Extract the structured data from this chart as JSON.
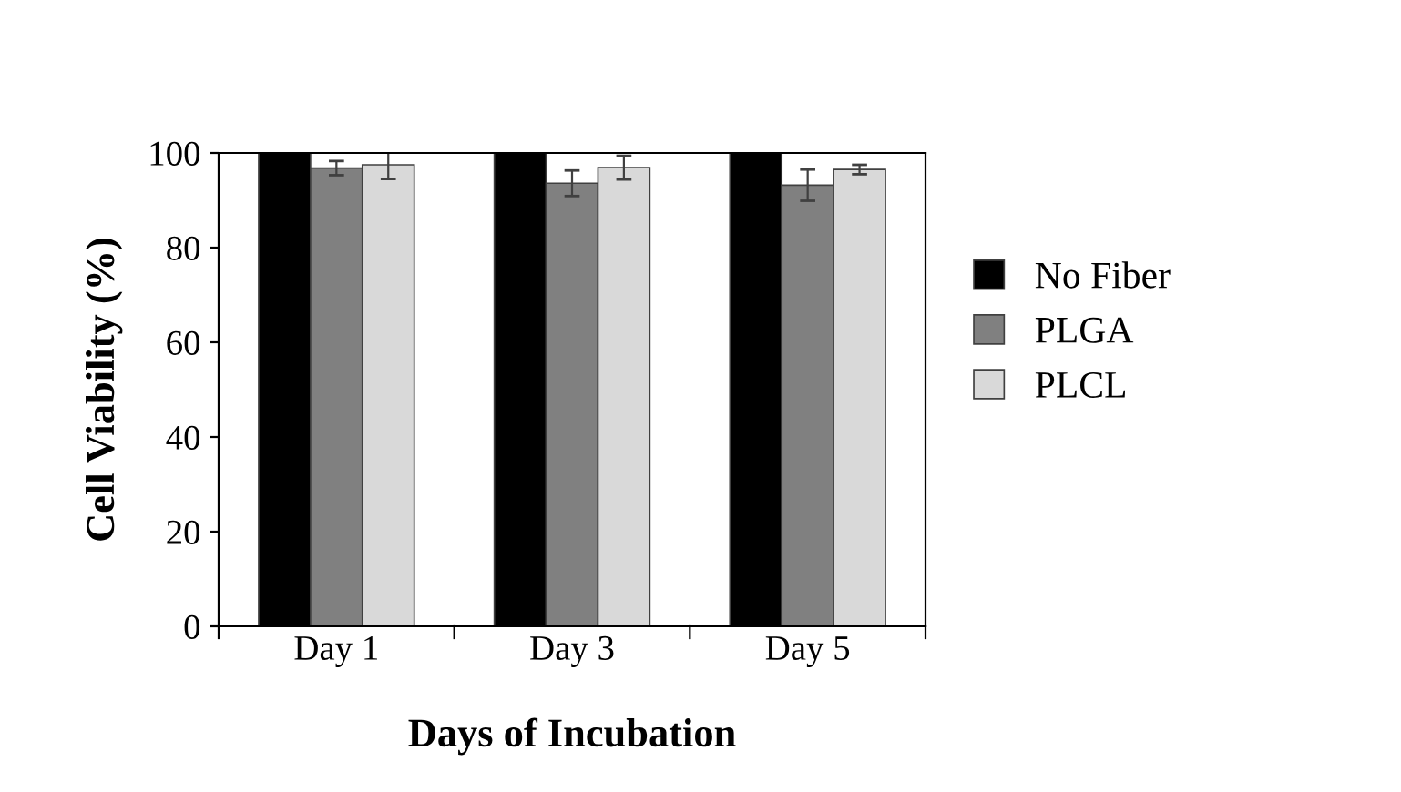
{
  "chart_data": {
    "type": "bar",
    "xlabel": "Days of Incubation",
    "ylabel": "Cell Viability (%)",
    "categories": [
      "Day 1",
      "Day 3",
      "Day 5"
    ],
    "series": [
      {
        "name": "No Fiber",
        "color": "#000000",
        "values": [
          100,
          100,
          100
        ]
      },
      {
        "name": "PLGA",
        "color": "#808080",
        "values": [
          96.8,
          93.6,
          93.2
        ],
        "errors": [
          1.5,
          2.7,
          3.3
        ]
      },
      {
        "name": "PLCL",
        "color": "#d9d9d9",
        "values": [
          97.5,
          96.9,
          96.5
        ],
        "errors": [
          3,
          2.5,
          1
        ]
      }
    ],
    "ylim": [
      0,
      100
    ],
    "yticks": [
      0,
      20,
      40,
      60,
      80,
      100
    ],
    "grid": false,
    "legend": "right"
  }
}
